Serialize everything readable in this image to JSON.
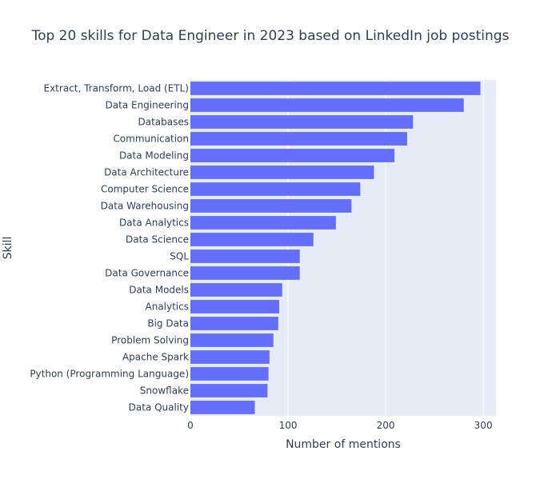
{
  "chart_data": {
    "type": "bar",
    "orientation": "horizontal",
    "title": "Top 20 skills for Data Engineer in 2023 based on LinkedIn job postings",
    "xlabel": "Number of mentions",
    "ylabel": "Skill",
    "xlim": [
      0,
      313
    ],
    "x_ticks": [
      0,
      100,
      200,
      300
    ],
    "grid": true,
    "legend": "none",
    "categories": [
      "Extract, Transform, Load (ETL)",
      "Data Engineering",
      "Databases",
      "Communication",
      "Data Modeling",
      "Data Architecture",
      "Computer Science",
      "Data Warehousing",
      "Data Analytics",
      "Data Science",
      "SQL",
      "Data Governance",
      "Data Models",
      "Analytics",
      "Big Data",
      "Problem Solving",
      "Apache Spark",
      "Python (Programming Language)",
      "Snowflake",
      "Data Quality"
    ],
    "values": [
      297,
      280,
      228,
      222,
      209,
      188,
      174,
      165,
      149,
      126,
      112,
      112,
      94,
      91,
      90,
      85,
      81,
      80,
      79,
      66
    ],
    "colors": {
      "bar": "#636efa",
      "plot_background": "#e5ecf6",
      "grid": "#ffffff",
      "text": "#2a3f5f"
    }
  }
}
